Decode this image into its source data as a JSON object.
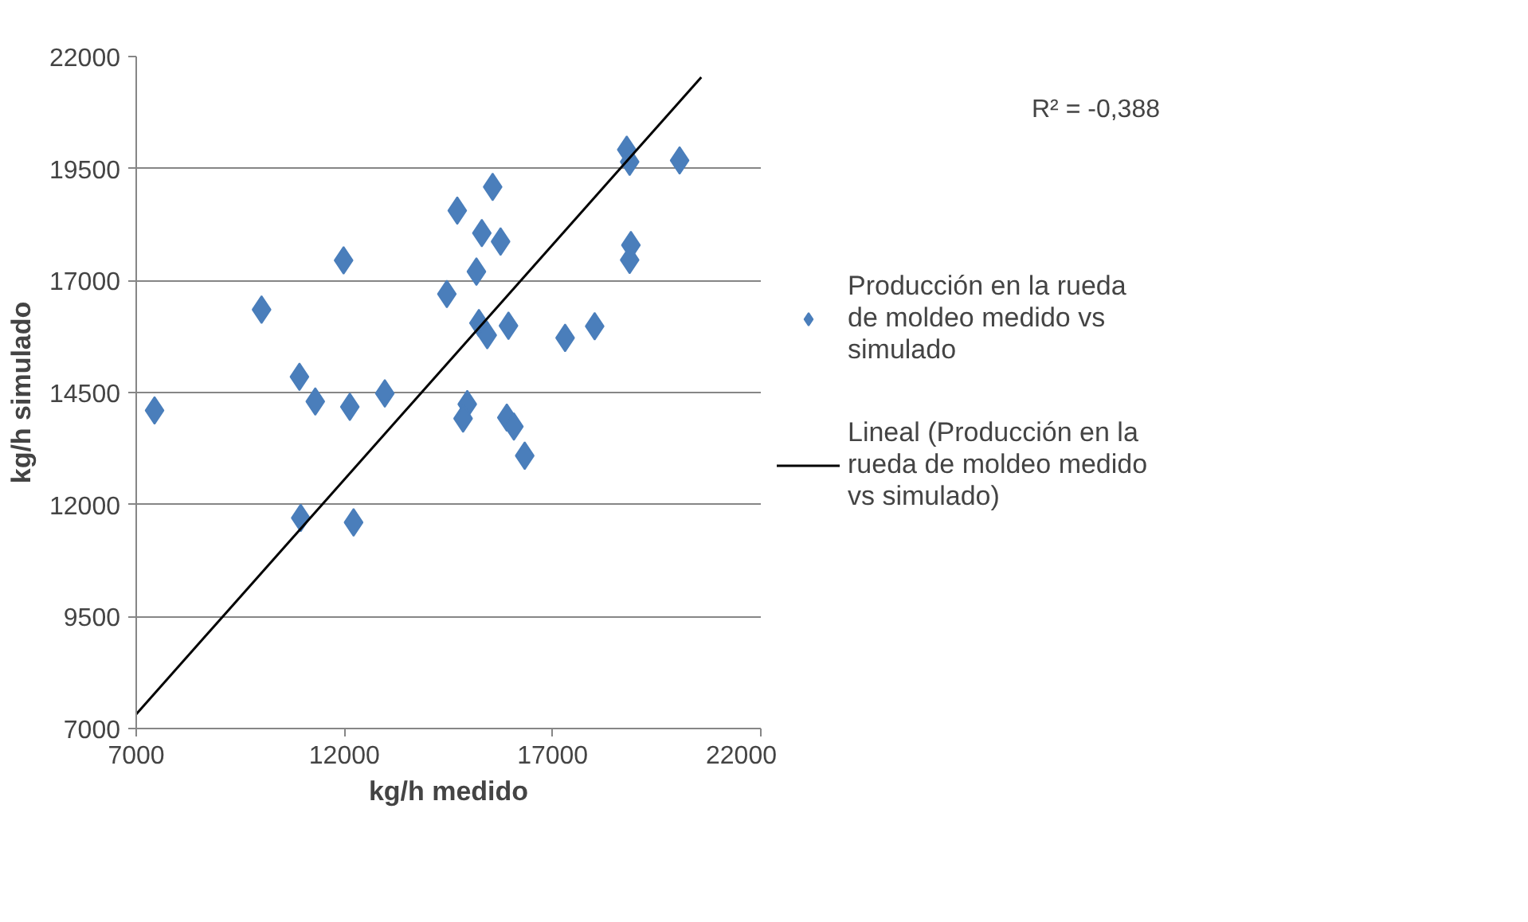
{
  "chart_data": {
    "type": "scatter",
    "xlabel": "kg/h medido",
    "ylabel": "kg/h simulado",
    "xlim": [
      7000,
      22000
    ],
    "xticks": [
      7000,
      12000,
      17000,
      22000
    ],
    "ylim": [
      7000,
      22000
    ],
    "yticks": [
      7000,
      9500,
      12000,
      14500,
      17000,
      19500,
      22000
    ],
    "grid": "y",
    "legend": "right",
    "annotations": [
      "R² = -0,388"
    ],
    "series": [
      {
        "name": "Producción en la rueda de moldeo medido vs simulado",
        "color": "#4a7ebb",
        "type": "scatter",
        "marker": "diamond",
        "x": [
          7440,
          10010,
          11980,
          10920,
          11300,
          12130,
          12970,
          10950,
          12220,
          14460,
          14710,
          15560,
          15300,
          15750,
          15170,
          15230,
          15430,
          15940,
          17300,
          18010,
          14950,
          14850,
          15900,
          16070,
          16330,
          18780,
          18850,
          20050,
          18880,
          18850
        ],
        "values": [
          14100,
          16350,
          17450,
          14850,
          14300,
          14180,
          14480,
          11700,
          11600,
          16700,
          18560,
          19090,
          18060,
          17870,
          17200,
          16050,
          15780,
          15990,
          15720,
          15980,
          14240,
          13920,
          13940,
          13740,
          13090,
          19920,
          19650,
          19680,
          17790,
          17460
        ]
      },
      {
        "name": "Lineal (Producción en la rueda de moldeo medido vs simulado)",
        "color": "#000000",
        "type": "line",
        "marker": "none",
        "line_style": "solid",
        "x": [
          7000,
          20570
        ],
        "values": [
          7320,
          21540
        ]
      }
    ]
  }
}
